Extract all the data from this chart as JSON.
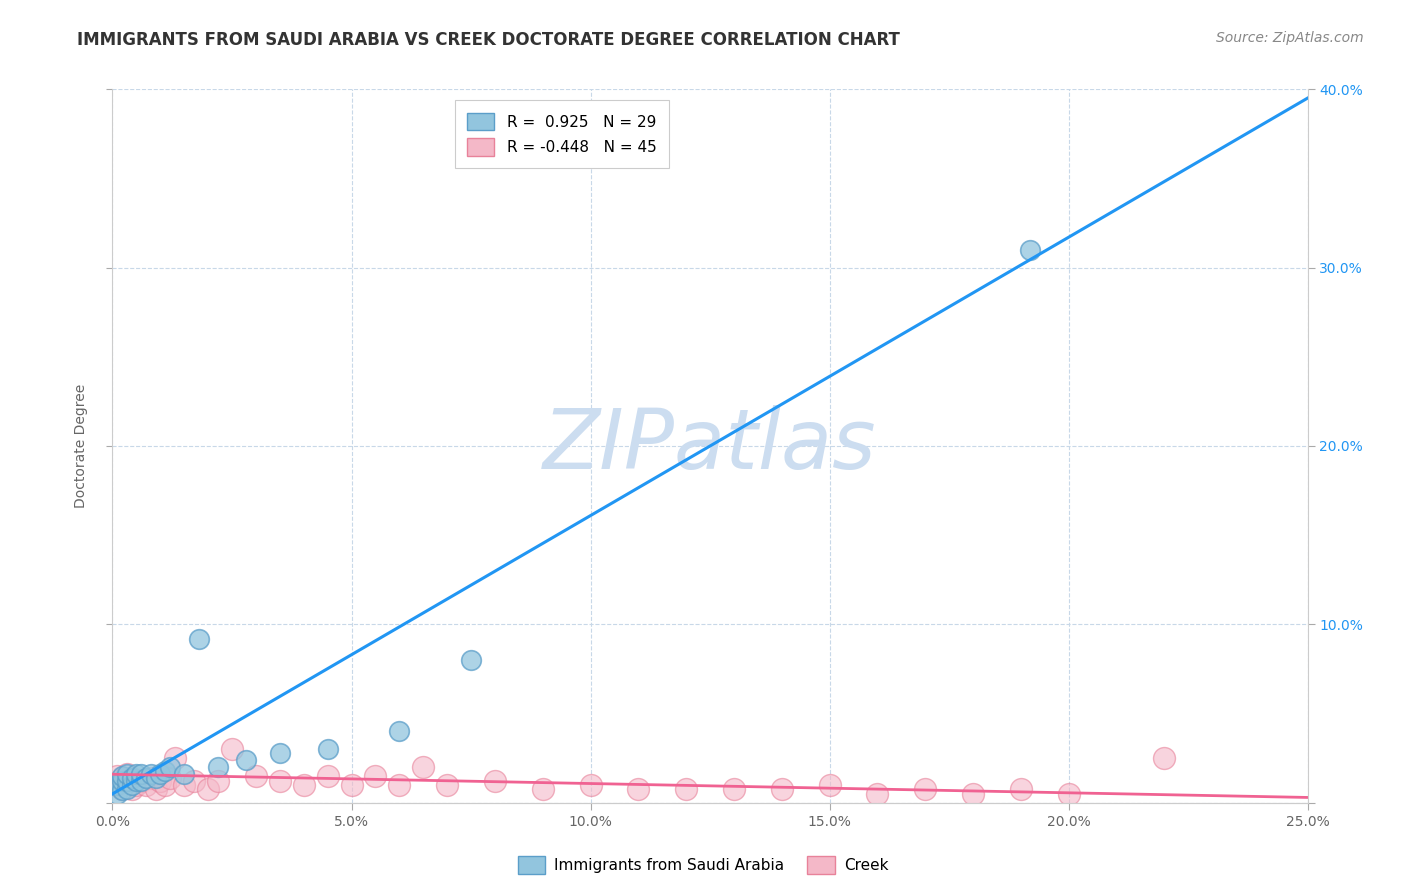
{
  "title": "IMMIGRANTS FROM SAUDI ARABIA VS CREEK DOCTORATE DEGREE CORRELATION CHART",
  "source": "Source: ZipAtlas.com",
  "ylabel": "Doctorate Degree",
  "watermark": "ZIPatlas",
  "xlim": [
    0.0,
    0.25
  ],
  "ylim": [
    0.0,
    0.4
  ],
  "xticks": [
    0.0,
    0.05,
    0.1,
    0.15,
    0.2,
    0.25
  ],
  "yticks": [
    0.0,
    0.1,
    0.2,
    0.3,
    0.4
  ],
  "xtick_labels": [
    "0.0%",
    "5.0%",
    "10.0%",
    "15.0%",
    "20.0%",
    "25.0%"
  ],
  "ytick_labels_right": [
    "",
    "10.0%",
    "20.0%",
    "30.0%",
    "40.0%"
  ],
  "series1_name": "Immigrants from Saudi Arabia",
  "series1_color": "#92c5de",
  "series1_edge_color": "#5b9ec9",
  "series1_R": "0.925",
  "series1_N": "29",
  "series2_name": "Creek",
  "series2_color": "#f4b8c8",
  "series2_edge_color": "#e8829a",
  "series2_R": "-0.448",
  "series2_N": "45",
  "series1_x": [
    0.001,
    0.001,
    0.002,
    0.002,
    0.002,
    0.003,
    0.003,
    0.003,
    0.004,
    0.004,
    0.005,
    0.005,
    0.006,
    0.006,
    0.007,
    0.008,
    0.009,
    0.01,
    0.011,
    0.012,
    0.015,
    0.018,
    0.022,
    0.028,
    0.035,
    0.045,
    0.06,
    0.075,
    0.192
  ],
  "series1_y": [
    0.005,
    0.01,
    0.007,
    0.012,
    0.015,
    0.008,
    0.012,
    0.016,
    0.01,
    0.014,
    0.012,
    0.016,
    0.012,
    0.016,
    0.014,
    0.016,
    0.014,
    0.016,
    0.018,
    0.02,
    0.016,
    0.092,
    0.02,
    0.024,
    0.028,
    0.03,
    0.04,
    0.08,
    0.31
  ],
  "series2_x": [
    0.001,
    0.001,
    0.002,
    0.002,
    0.003,
    0.003,
    0.004,
    0.004,
    0.005,
    0.006,
    0.007,
    0.008,
    0.009,
    0.01,
    0.011,
    0.012,
    0.013,
    0.015,
    0.017,
    0.02,
    0.022,
    0.025,
    0.03,
    0.035,
    0.04,
    0.045,
    0.05,
    0.055,
    0.06,
    0.065,
    0.07,
    0.08,
    0.09,
    0.1,
    0.11,
    0.12,
    0.13,
    0.14,
    0.15,
    0.16,
    0.17,
    0.18,
    0.19,
    0.2,
    0.22
  ],
  "series2_y": [
    0.01,
    0.015,
    0.008,
    0.014,
    0.012,
    0.016,
    0.008,
    0.014,
    0.01,
    0.012,
    0.01,
    0.014,
    0.008,
    0.012,
    0.01,
    0.014,
    0.025,
    0.01,
    0.012,
    0.008,
    0.012,
    0.03,
    0.015,
    0.012,
    0.01,
    0.015,
    0.01,
    0.015,
    0.01,
    0.02,
    0.01,
    0.012,
    0.008,
    0.01,
    0.008,
    0.008,
    0.008,
    0.008,
    0.01,
    0.005,
    0.008,
    0.005,
    0.008,
    0.005,
    0.025
  ],
  "title_fontsize": 12,
  "axis_label_fontsize": 10,
  "tick_fontsize": 10,
  "legend_fontsize": 11,
  "source_fontsize": 10,
  "watermark_fontsize": 60,
  "watermark_color": "#ccddf0",
  "background_color": "#ffffff",
  "grid_color": "#c8d8e8",
  "line1_color": "#2196f3",
  "line2_color": "#f06292",
  "right_tick_color": "#2196f3"
}
